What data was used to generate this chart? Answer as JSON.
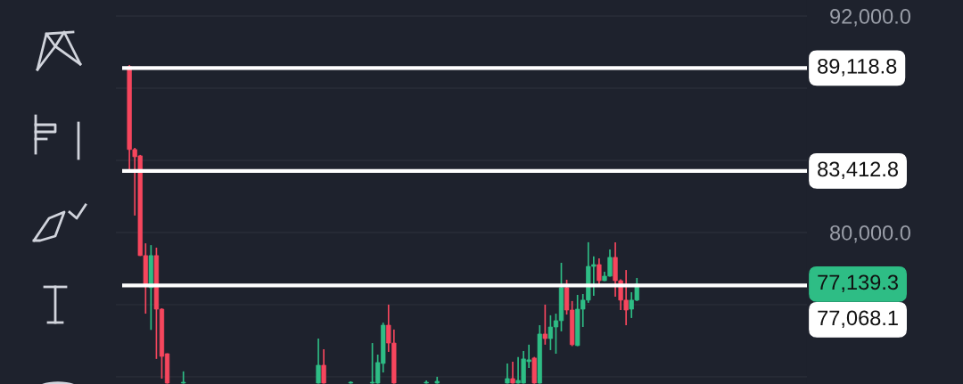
{
  "chart_data": {
    "type": "candlestick",
    "categories": [
      null,
      null,
      null,
      null,
      null,
      null,
      null,
      null,
      null,
      null,
      null,
      null,
      null,
      null,
      null,
      null,
      null,
      null,
      null,
      null,
      null,
      null,
      null,
      null,
      null,
      null,
      null,
      null,
      null,
      null,
      null,
      null,
      null,
      null,
      null,
      null,
      null,
      null,
      null,
      null,
      null,
      null,
      null,
      null,
      null,
      null,
      null,
      null,
      null,
      null,
      null,
      null,
      null,
      null,
      null,
      null,
      null,
      null,
      null,
      null,
      null,
      null,
      null,
      null,
      null,
      null,
      null,
      null,
      null,
      null,
      null,
      null,
      null,
      null,
      null,
      null,
      null,
      null,
      null,
      null,
      null,
      null,
      null,
      null,
      null,
      null,
      null,
      null,
      null,
      null,
      null,
      null,
      null,
      null,
      null,
      null,
      null,
      null,
      null,
      null,
      null,
      null,
      null,
      null,
      null,
      null,
      null,
      null,
      null,
      null,
      null,
      null,
      null,
      null,
      null,
      null,
      null,
      null,
      null,
      null,
      null,
      null,
      null,
      null,
      null,
      null,
      null,
      null
    ],
    "ohlc": [
      null,
      null,
      [
        89200,
        89290,
        83500,
        84600
      ],
      [
        84600,
        84690,
        80940,
        84200
      ],
      [
        84250,
        84300,
        78700,
        78720
      ],
      [
        78720,
        79400,
        75500,
        77000
      ],
      [
        76940,
        79300,
        74600,
        78720
      ],
      [
        78720,
        79160,
        72990,
        75750
      ],
      [
        75750,
        75800,
        71900,
        73130
      ],
      [
        73280,
        73300,
        71620,
        71650
      ],
      null,
      null,
      [
        71650,
        72300,
        71620,
        71700
      ],
      null,
      null,
      null,
      null,
      null,
      null,
      null,
      null,
      null,
      null,
      null,
      null,
      null,
      null,
      null,
      null,
      null,
      null,
      null,
      null,
      null,
      null,
      null,
      null,
      [
        71650,
        74120,
        71620,
        72640
      ],
      [
        72640,
        73530,
        71620,
        71650
      ],
      null,
      null,
      null,
      null,
      [
        71650,
        71750,
        71620,
        71700
      ],
      null,
      null,
      null,
      [
        71650,
        73870,
        71620,
        71700
      ],
      [
        71650,
        73230,
        71620,
        72790
      ],
      [
        72740,
        75000,
        72240,
        74860
      ],
      [
        74860,
        76000,
        73380,
        73870
      ],
      [
        73870,
        74620,
        71620,
        71650
      ],
      null,
      null,
      null,
      null,
      null,
      [
        71650,
        71800,
        71620,
        71700
      ],
      null,
      [
        71650,
        72000,
        71620,
        71750
      ],
      null,
      null,
      null,
      null,
      null,
      null,
      null,
      null,
      null,
      null,
      null,
      null,
      [
        71650,
        72740,
        71620,
        71900
      ],
      [
        71900,
        72840,
        71620,
        71650
      ],
      [
        71650,
        73090,
        71620,
        71800
      ],
      [
        71650,
        73430,
        71620,
        72990
      ],
      [
        72840,
        73780,
        72490,
        72940
      ],
      [
        73040,
        73100,
        71620,
        71650
      ],
      [
        71650,
        74860,
        71620,
        74370
      ],
      [
        74370,
        76000,
        73780,
        74120
      ],
      [
        74120,
        75410,
        73480,
        74760
      ],
      [
        74760,
        75500,
        73280,
        75110
      ],
      [
        75110,
        78320,
        74520,
        76940
      ],
      [
        76940,
        77380,
        75450,
        75700
      ],
      [
        75700,
        76200,
        73700,
        73780
      ],
      [
        73730,
        76540,
        73700,
        75750
      ],
      [
        75750,
        76590,
        74760,
        76250
      ],
      [
        76250,
        79460,
        76100,
        78120
      ],
      [
        78120,
        78670,
        76490,
        78220
      ],
      [
        78220,
        78570,
        77090,
        77330
      ],
      [
        77330,
        77830,
        77300,
        77580
      ],
      [
        77580,
        79060,
        77550,
        78620
      ],
      [
        78620,
        79460,
        76440,
        77330
      ],
      [
        77330,
        77400,
        75700,
        76250
      ],
      [
        76250,
        77920,
        74860,
        75700
      ],
      [
        75750,
        76690,
        75260,
        76250
      ],
      [
        76250,
        77480,
        76200,
        77139.3
      ],
      null,
      null,
      null,
      null,
      null,
      null,
      null,
      null,
      null,
      null,
      null,
      null,
      null,
      null,
      null,
      null,
      null,
      null,
      null,
      null,
      null,
      null,
      null,
      null,
      null,
      null,
      null,
      null,
      null,
      null,
      null
    ],
    "ylim": [
      71600,
      92890
    ],
    "yticks": [
      {
        "value": 92000,
        "label": "92,000.0"
      },
      {
        "value": 88000,
        "label": null
      },
      {
        "value": 84000,
        "label": null
      },
      {
        "value": 80000,
        "label": "80,000.0"
      },
      {
        "value": 76000,
        "label": null
      },
      {
        "value": 72000,
        "label": null
      }
    ],
    "grid": true,
    "tick_labels": "y",
    "ref_lines": [
      {
        "axis": "y",
        "value": 89118.8,
        "label": "89,118.8",
        "color": "#ffffff"
      },
      {
        "axis": "y",
        "value": 83412.8,
        "label": "83,412.8",
        "color": "#ffffff"
      },
      {
        "axis": "y",
        "value": 77068.1,
        "label": "77,068.1",
        "color": "#ffffff"
      }
    ],
    "annotations": [
      "77,139.3"
    ]
  }
}
